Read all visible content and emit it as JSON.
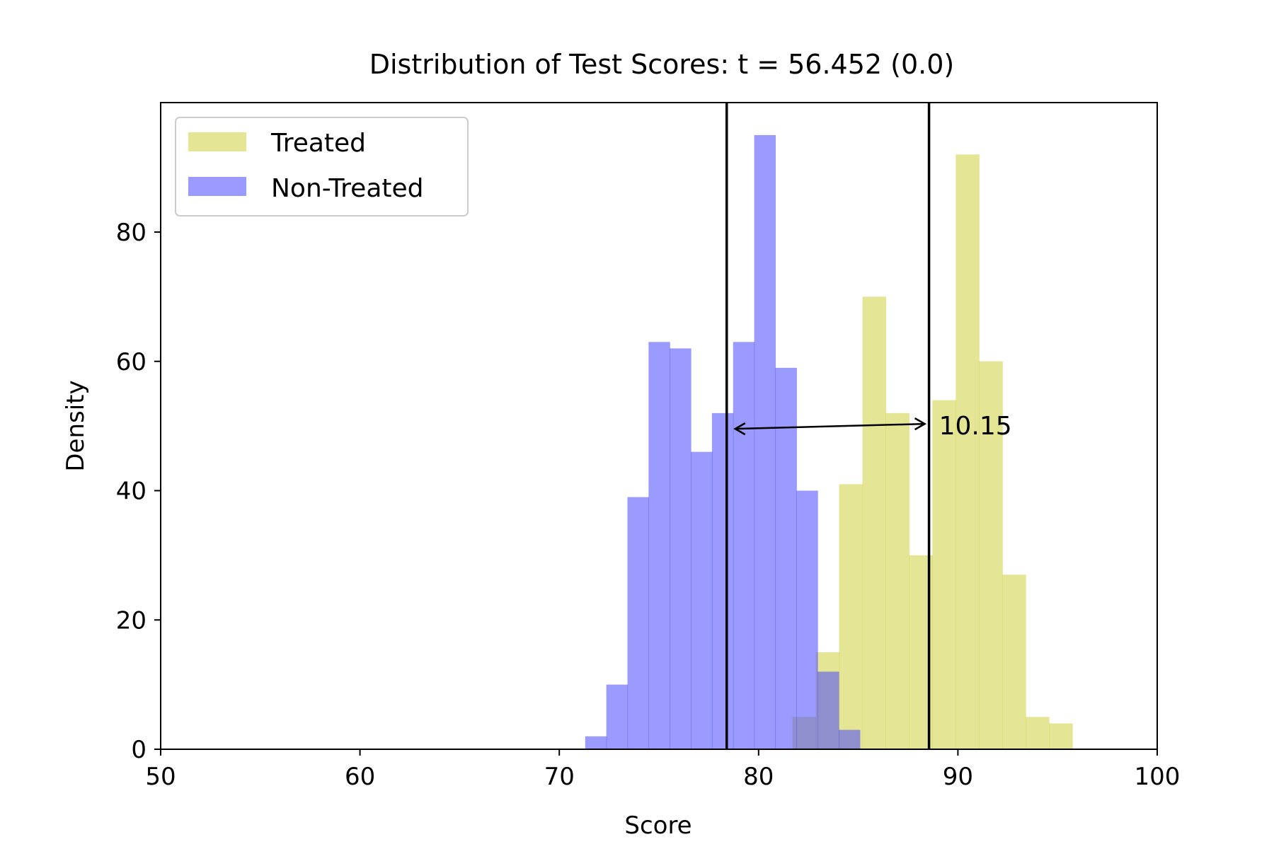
{
  "chart_data": {
    "type": "bar",
    "title": "Distribution of Test Scores: t = 56.452 (0.0)",
    "xlabel": "Score",
    "ylabel": "Density",
    "xlim": [
      50,
      100
    ],
    "ylim": [
      0,
      100
    ],
    "xticks": [
      "50",
      "60",
      "70",
      "80",
      "90",
      "100"
    ],
    "yticks": [
      "0",
      "20",
      "40",
      "60",
      "80"
    ],
    "grid": false,
    "legend_position": "top-left",
    "series": [
      {
        "name": "Treated",
        "color": "#cfcf3f",
        "opacity": 0.55,
        "bin_start": 81.7,
        "bin_width": 1.17,
        "values": [
          5,
          15,
          41,
          70,
          52,
          30,
          54,
          92,
          60,
          27,
          5,
          4
        ]
      },
      {
        "name": "Non-Treated",
        "color": "#4040ff",
        "opacity": 0.52,
        "bin_start": 71.3,
        "bin_width": 1.06,
        "values": [
          2,
          10,
          39,
          63,
          62,
          46,
          52,
          63,
          95,
          59,
          40,
          12,
          3
        ]
      }
    ],
    "vlines": [
      78.4,
      88.55
    ],
    "annotation": {
      "text": "10.15",
      "y": 50,
      "x_start": 78.4,
      "x_end": 88.55
    }
  }
}
